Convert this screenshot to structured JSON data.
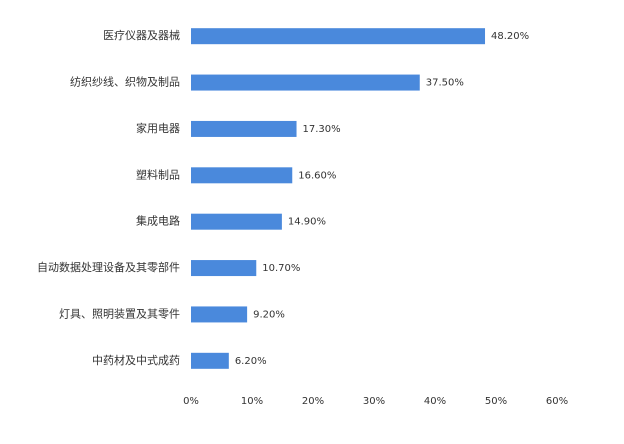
{
  "chart_data": {
    "type": "barh",
    "categories": [
      "医疗仪器及器械",
      "纺织纱线、织物及制品",
      "家用电器",
      "塑料制品",
      "集成电路",
      "自动数据处理设备及其零部件",
      "灯具、照明装置及其零件",
      "中药材及中式成药"
    ],
    "values": [
      48.2,
      37.5,
      17.3,
      16.6,
      14.9,
      10.7,
      9.2,
      6.2
    ],
    "value_labels": [
      "48.20%",
      "37.50%",
      "17.30%",
      "16.60%",
      "14.90%",
      "10.70%",
      "9.20%",
      "6.20%"
    ],
    "color": "#4a89dc",
    "xlim": [
      0,
      60
    ],
    "xticks": [
      {
        "value": 0,
        "label": "0%"
      },
      {
        "value": 10,
        "label": "10%"
      },
      {
        "value": 20,
        "label": "20%"
      },
      {
        "value": 30,
        "label": "30%"
      },
      {
        "value": 40,
        "label": "40%"
      },
      {
        "value": 50,
        "label": "50%"
      },
      {
        "value": 60,
        "label": "60%"
      }
    ]
  }
}
